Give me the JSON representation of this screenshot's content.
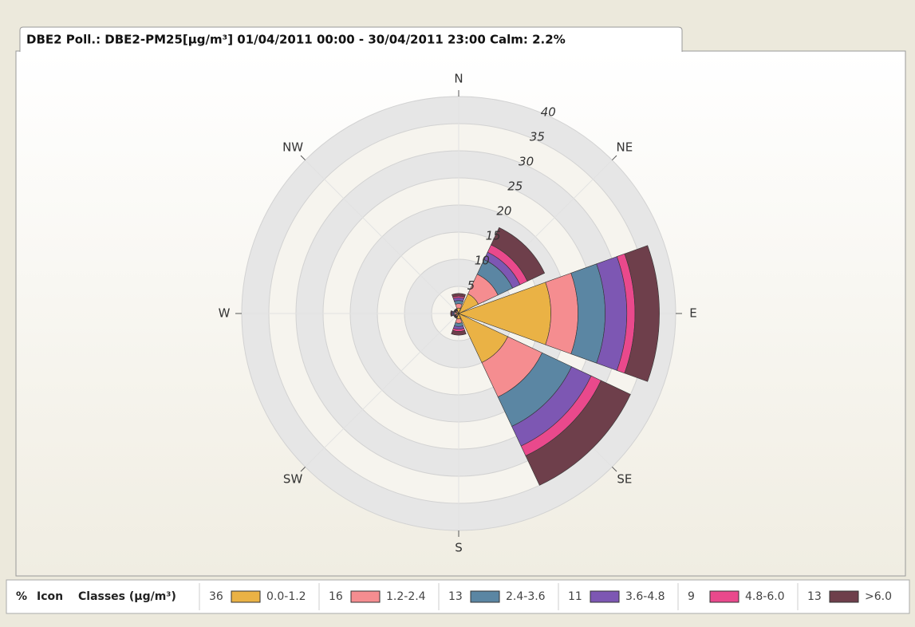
{
  "chart_data": {
    "type": "polar_stacked_bar",
    "title": "DBE2 Poll.: DBE2-PM25[µg/m³] 01/04/2011 00:00 - 30/04/2011 23:00 Calm: 2.2%",
    "categories": [
      "N",
      "NE",
      "E",
      "SE",
      "S",
      "SW",
      "W",
      "NW"
    ],
    "ylim": [
      0,
      40
    ],
    "yticks": [
      5,
      10,
      15,
      20,
      25,
      30,
      35,
      40
    ],
    "legend_headers": [
      "%",
      "Icon",
      "Classes (µg/m³)"
    ],
    "series": [
      {
        "name": "0.0-1.2",
        "share": 36,
        "color": "#eab245",
        "values": [
          1,
          4,
          17,
          10,
          1,
          0.4,
          0.5,
          0.4
        ]
      },
      {
        "name": "1.2-2.4",
        "share": 16,
        "color": "#f58d90",
        "values": [
          0.8,
          4,
          5,
          7,
          0.8,
          0.2,
          0.3,
          0.2
        ]
      },
      {
        "name": "2.4-3.6",
        "share": 13,
        "color": "#5b86a3",
        "values": [
          0.6,
          3,
          5,
          6,
          0.6,
          0.1,
          0.2,
          0.1
        ]
      },
      {
        "name": "3.6-4.8",
        "share": 11,
        "color": "#7d57b3",
        "values": [
          0.5,
          1.5,
          4,
          4,
          0.5,
          0.1,
          0.2,
          0.1
        ]
      },
      {
        "name": "4.8-6.0",
        "share": 9,
        "color": "#e9498c",
        "values": [
          0.3,
          1.5,
          1.5,
          2,
          0.4,
          0.1,
          0.1,
          0.1
        ]
      },
      {
        "name": ">6.0",
        "share": 13,
        "color": "#6e3f4b",
        "values": [
          0.5,
          3.5,
          4.5,
          6,
          0.7,
          0.1,
          0.2,
          0.1
        ]
      }
    ]
  }
}
